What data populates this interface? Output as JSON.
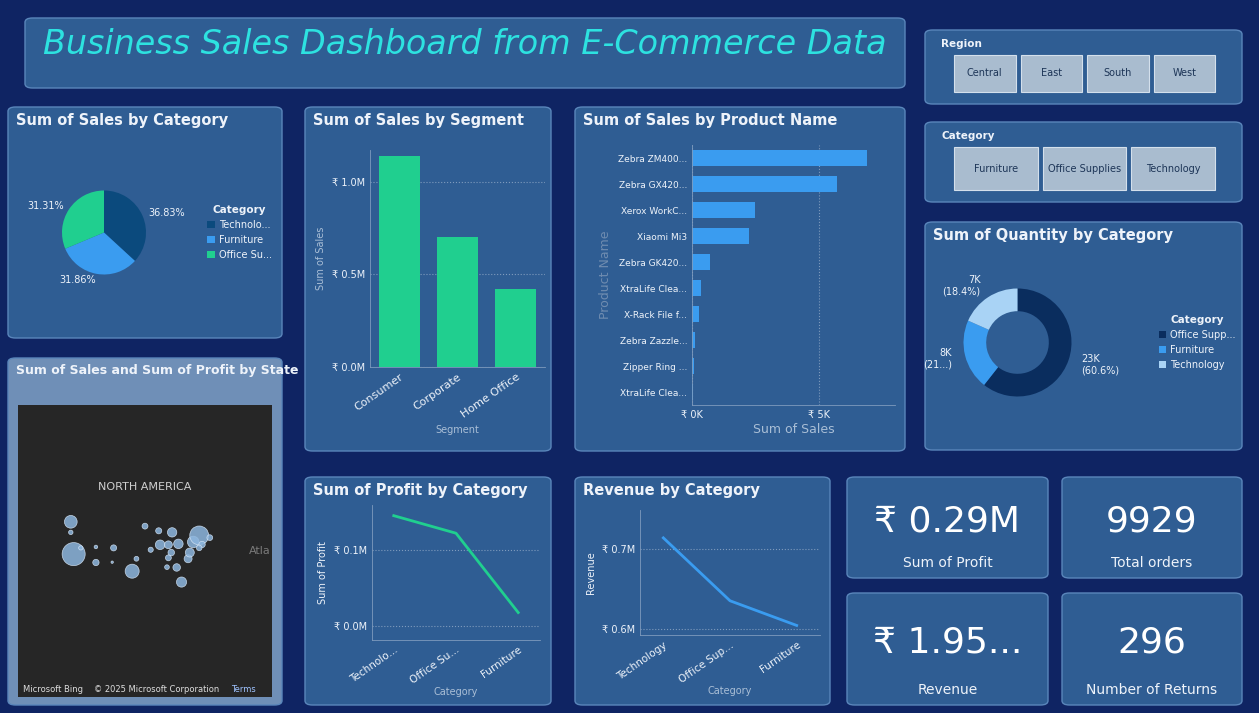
{
  "title": "Business Sales Dashboard from E-Commerce Data",
  "slicers": [
    {
      "title": "Region",
      "items": [
        "Central",
        "East",
        "South",
        "West"
      ]
    },
    {
      "title": "Category",
      "items": [
        "Furniture",
        "Office Supplies",
        "Technology"
      ]
    }
  ],
  "kpis": [
    {
      "value": "₹ 0.29M",
      "label": "Sum of Profit"
    },
    {
      "value": "9929",
      "label": "Total orders"
    },
    {
      "value": "₹ 1.95...",
      "label": "Revenue"
    },
    {
      "value": "296",
      "label": "Number of Returns"
    }
  ],
  "chart_data": [
    {
      "type": "pie",
      "title": "Sum of Sales by Category",
      "legend_title": "Category",
      "categories": [
        "Technolo...",
        "Furniture",
        "Office Su..."
      ],
      "values": [
        36.83,
        31.86,
        31.31
      ],
      "value_labels": [
        "36.83%",
        "31.86%",
        "31.31%"
      ],
      "colors": [
        "#0b4a7d",
        "#3a9cf0",
        "#20cf8f"
      ],
      "data_labels": true,
      "legend": "right"
    },
    {
      "type": "bar",
      "title": "Sum of Sales by Segment",
      "x_label": "Segment",
      "y_label": "Sum of Sales",
      "categories": [
        "Consumer",
        "Corporate",
        "Home Office"
      ],
      "values": [
        1140000,
        700000,
        420000
      ],
      "color": "#20cf8f",
      "ylim": [
        0,
        1170000
      ],
      "yticks": [
        {
          "value": 0,
          "label": "₹ 0.0M"
        },
        {
          "value": 500000,
          "label": "₹ 0.5M"
        },
        {
          "value": 1000000,
          "label": "₹ 1.0M"
        }
      ],
      "grid": true
    },
    {
      "type": "bar",
      "title": "Sum of Sales by Product Name",
      "orientation": "horizontal",
      "x_label": "Sum of Sales",
      "y_label": "Product Name",
      "categories": [
        "Zebra ZM400...",
        "Zebra GX420...",
        "Xerox WorkC...",
        "Xiaomi Mi3",
        "Zebra GK420...",
        "XtraLife Clea...",
        "X-Rack File f...",
        "Zebra Zazzle...",
        "Zipper Ring ...",
        "XtraLife Clea..."
      ],
      "values": [
        6900,
        5700,
        2480,
        2230,
        700,
        370,
        290,
        120,
        80,
        50
      ],
      "color": "#3a9cf0",
      "xlim": [
        0,
        8000
      ],
      "xticks": [
        {
          "value": 0,
          "label": "₹ 0K"
        },
        {
          "value": 5000,
          "label": "₹ 5K"
        }
      ],
      "grid": true
    },
    {
      "type": "donut",
      "title": "Sum of Quantity by Category",
      "legend_title": "Category",
      "categories": [
        "Office Supp...",
        "Furniture",
        "Technology"
      ],
      "values": [
        23000,
        7980,
        6970
      ],
      "value_labels": [
        "23K\n(60.6%)",
        "8K\n(21...)",
        "7K\n(18.4%)"
      ],
      "colors": [
        "#0a2d5e",
        "#3a9cf0",
        "#a9d3f5"
      ],
      "data_labels": true,
      "legend": "right"
    },
    {
      "type": "line",
      "title": "Sum of Profit by Category",
      "x_label": "Category",
      "y_label": "Sum of Profit",
      "categories": [
        "Technolo...",
        "Office Su...",
        "Furniture"
      ],
      "values": [
        145000,
        122000,
        18000
      ],
      "color": "#20cf8f",
      "ylim": [
        -18000,
        159000
      ],
      "yticks": [
        {
          "value": 0,
          "label": "₹ 0.0M"
        },
        {
          "value": 100000,
          "label": "₹ 0.1M"
        }
      ],
      "grid": true
    },
    {
      "type": "line",
      "title": "Revenue by Category",
      "x_label": "Category",
      "y_label": "Revenue",
      "categories": [
        "Technology",
        "Office Sup...",
        "Furniture"
      ],
      "values": [
        714000,
        635000,
        604000
      ],
      "color": "#3a9cf0",
      "ylim": [
        592000,
        749000
      ],
      "yticks": [
        {
          "value": 600000,
          "label": "₹ 0.6M"
        },
        {
          "value": 700000,
          "label": "₹ 0.7M"
        }
      ],
      "grid": true
    },
    {
      "type": "map",
      "title": "Sum of Sales and Sum of Profit by State",
      "annotations": [
        "NORTH AMERICA",
        "Microsoft Bing",
        "© 2025 Microsoft Corporation",
        "Terms",
        "Atla"
      ],
      "x": [
        -119.5,
        -120.5,
        -120.5,
        -117,
        -111.7,
        -111.7,
        -105.5,
        -106,
        -99,
        -97.5,
        -94.5,
        -89.2,
        -92.5,
        -89.7,
        -85,
        -86.3,
        -82.8,
        -85.3,
        -86.3,
        -83.4,
        -81.7,
        -86.8,
        -79.4,
        -78.8,
        -77.6,
        -75.5,
        -74.5,
        -71.8,
        -75.5
      ],
      "y": [
        37,
        47.4,
        44,
        39,
        34.3,
        39.3,
        39,
        34.4,
        31.5,
        35.5,
        46,
        40,
        38.4,
        44.5,
        44,
        40,
        40.3,
        37.5,
        35.8,
        32.7,
        28,
        32.8,
        35.5,
        37.5,
        40.9,
        43,
        40.1,
        42.3,
        39
      ],
      "sizes": [
        460,
        140,
        17,
        16,
        35,
        11,
        32,
        5,
        170,
        20,
        30,
        80,
        23,
        32,
        76,
        53,
        78,
        37,
        30,
        49,
        89,
        19,
        55,
        70,
        116,
        310,
        35,
        29,
        27
      ],
      "color": "#8db6de",
      "xlim": [
        -139,
        -50
      ],
      "ylim": [
        -9,
        85
      ],
      "tick_labels": false
    }
  ]
}
